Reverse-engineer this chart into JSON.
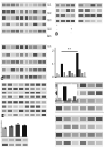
{
  "white": "#ffffff",
  "near_white": "#f5f5f5",
  "light_bg": "#e8e8e8",
  "mid_bg": "#c8c8c8",
  "dark_band": "#2a2a2a",
  "mid_band": "#555555",
  "light_band": "#888888",
  "very_light_band": "#aaaaaa",
  "text_color": "#111111",
  "panel_bg": "#ffffff",
  "blot_area_bg": "#dddddd",
  "bar_black": "#111111",
  "bar_dark": "#333333",
  "bar_mid": "#666666",
  "bar_light": "#999999",
  "bar_vlight": "#bbbbbb"
}
